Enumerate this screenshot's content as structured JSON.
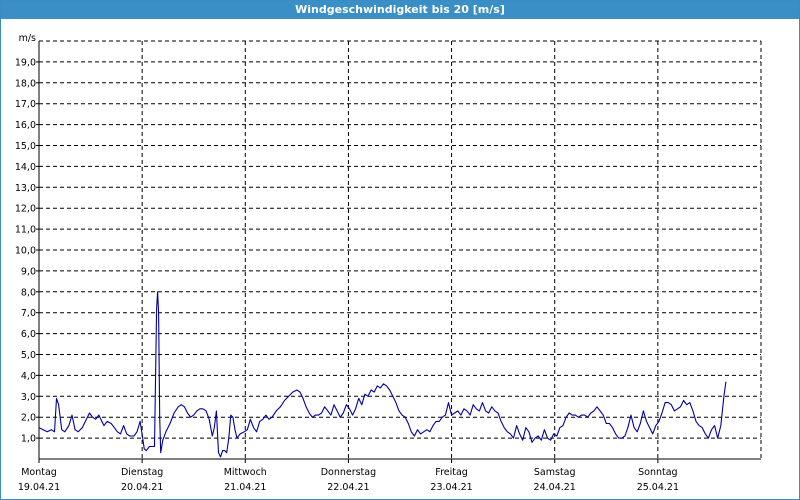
{
  "window": {
    "title": "Windgeschwindigkeit bis 20 [m/s]"
  },
  "colors": {
    "titlebar": "#3b8fc7",
    "line": "#0000a0",
    "grid": "#000000"
  },
  "chart_data": {
    "type": "line",
    "title": "Windgeschwindigkeit bis 20 [m/s]",
    "ylabel": "m/s",
    "xlabel": "",
    "ylim": [
      0,
      20
    ],
    "xlim": [
      0,
      7
    ],
    "grid": true,
    "yticks": [
      "1,0",
      "2,0",
      "3,0",
      "4,0",
      "5,0",
      "6,0",
      "7,0",
      "8,0",
      "9,0",
      "10,0",
      "11,0",
      "12,0",
      "13,0",
      "14,0",
      "15,0",
      "16,0",
      "17,0",
      "18,0",
      "19,0"
    ],
    "x_categories": [
      {
        "day": "Montag",
        "date": "19.04.21"
      },
      {
        "day": "Dienstag",
        "date": "20.04.21"
      },
      {
        "day": "Mittwoch",
        "date": "21.04.21"
      },
      {
        "day": "Donnerstag",
        "date": "22.04.21"
      },
      {
        "day": "Freitag",
        "date": "23.04.21"
      },
      {
        "day": "Samstag",
        "date": "24.04.21"
      },
      {
        "day": "Sonntag",
        "date": "25.04.21"
      }
    ],
    "series": [
      {
        "points": [
          [
            0.0,
            1.5
          ],
          [
            0.04,
            1.4
          ],
          [
            0.08,
            1.3
          ],
          [
            0.12,
            1.4
          ],
          [
            0.15,
            1.3
          ],
          [
            0.17,
            2.9
          ],
          [
            0.19,
            2.6
          ],
          [
            0.22,
            1.4
          ],
          [
            0.25,
            1.3
          ],
          [
            0.29,
            1.6
          ],
          [
            0.32,
            2.1
          ],
          [
            0.35,
            1.4
          ],
          [
            0.38,
            1.3
          ],
          [
            0.42,
            1.5
          ],
          [
            0.46,
            1.9
          ],
          [
            0.49,
            2.2
          ],
          [
            0.52,
            2.0
          ],
          [
            0.55,
            1.9
          ],
          [
            0.58,
            2.1
          ],
          [
            0.61,
            1.8
          ],
          [
            0.63,
            1.6
          ],
          [
            0.66,
            1.8
          ],
          [
            0.7,
            1.7
          ],
          [
            0.73,
            1.5
          ],
          [
            0.76,
            1.3
          ],
          [
            0.79,
            1.2
          ],
          [
            0.82,
            1.6
          ],
          [
            0.85,
            1.2
          ],
          [
            0.88,
            1.1
          ],
          [
            0.92,
            1.1
          ],
          [
            0.95,
            1.3
          ],
          [
            0.98,
            1.8
          ],
          [
            1.0,
            1.2
          ],
          [
            1.02,
            0.5
          ],
          [
            1.04,
            0.4
          ],
          [
            1.07,
            0.6
          ],
          [
            1.1,
            0.6
          ],
          [
            1.12,
            0.6
          ],
          [
            1.14,
            7.2
          ],
          [
            1.15,
            8.0
          ],
          [
            1.16,
            7.0
          ],
          [
            1.17,
            2.0
          ],
          [
            1.18,
            0.3
          ],
          [
            1.2,
            0.9
          ],
          [
            1.23,
            1.3
          ],
          [
            1.27,
            1.7
          ],
          [
            1.31,
            2.2
          ],
          [
            1.35,
            2.5
          ],
          [
            1.38,
            2.6
          ],
          [
            1.41,
            2.5
          ],
          [
            1.44,
            2.2
          ],
          [
            1.47,
            2.0
          ],
          [
            1.5,
            2.1
          ],
          [
            1.53,
            2.3
          ],
          [
            1.56,
            2.4
          ],
          [
            1.59,
            2.4
          ],
          [
            1.62,
            2.3
          ],
          [
            1.65,
            1.9
          ],
          [
            1.68,
            1.1
          ],
          [
            1.7,
            1.5
          ],
          [
            1.72,
            2.3
          ],
          [
            1.74,
            0.3
          ],
          [
            1.76,
            0.1
          ],
          [
            1.78,
            0.4
          ],
          [
            1.8,
            0.4
          ],
          [
            1.82,
            0.3
          ],
          [
            1.84,
            1.0
          ],
          [
            1.86,
            2.1
          ],
          [
            1.88,
            2.0
          ],
          [
            1.9,
            1.4
          ],
          [
            1.92,
            1.0
          ],
          [
            1.95,
            1.2
          ],
          [
            1.99,
            1.3
          ],
          [
            2.02,
            1.4
          ],
          [
            2.05,
            1.9
          ],
          [
            2.08,
            1.5
          ],
          [
            2.11,
            1.3
          ],
          [
            2.14,
            1.8
          ],
          [
            2.17,
            1.9
          ],
          [
            2.2,
            2.1
          ],
          [
            2.23,
            1.9
          ],
          [
            2.26,
            2.0
          ],
          [
            2.3,
            2.3
          ],
          [
            2.34,
            2.5
          ],
          [
            2.38,
            2.8
          ],
          [
            2.42,
            3.0
          ],
          [
            2.46,
            3.2
          ],
          [
            2.5,
            3.3
          ],
          [
            2.53,
            3.2
          ],
          [
            2.56,
            2.9
          ],
          [
            2.59,
            2.5
          ],
          [
            2.62,
            2.2
          ],
          [
            2.65,
            2.0
          ],
          [
            2.68,
            2.1
          ],
          [
            2.71,
            2.1
          ],
          [
            2.74,
            2.2
          ],
          [
            2.77,
            2.5
          ],
          [
            2.8,
            2.3
          ],
          [
            2.83,
            2.1
          ],
          [
            2.86,
            2.6
          ],
          [
            2.89,
            2.3
          ],
          [
            2.92,
            2.0
          ],
          [
            2.95,
            2.2
          ],
          [
            2.98,
            2.6
          ],
          [
            3.01,
            2.4
          ],
          [
            3.04,
            2.1
          ],
          [
            3.07,
            2.4
          ],
          [
            3.1,
            2.9
          ],
          [
            3.13,
            2.6
          ],
          [
            3.16,
            3.1
          ],
          [
            3.19,
            3.0
          ],
          [
            3.22,
            3.3
          ],
          [
            3.25,
            3.2
          ],
          [
            3.28,
            3.5
          ],
          [
            3.31,
            3.4
          ],
          [
            3.34,
            3.6
          ],
          [
            3.37,
            3.5
          ],
          [
            3.4,
            3.3
          ],
          [
            3.43,
            3.0
          ],
          [
            3.46,
            2.7
          ],
          [
            3.49,
            2.3
          ],
          [
            3.52,
            2.1
          ],
          [
            3.55,
            2.0
          ],
          [
            3.58,
            1.7
          ],
          [
            3.61,
            1.3
          ],
          [
            3.64,
            1.1
          ],
          [
            3.67,
            1.4
          ],
          [
            3.7,
            1.2
          ],
          [
            3.73,
            1.3
          ],
          [
            3.76,
            1.4
          ],
          [
            3.79,
            1.3
          ],
          [
            3.82,
            1.6
          ],
          [
            3.85,
            1.8
          ],
          [
            3.88,
            1.8
          ],
          [
            3.91,
            2.0
          ],
          [
            3.94,
            2.1
          ],
          [
            3.97,
            2.7
          ],
          [
            4.0,
            2.1
          ],
          [
            4.03,
            2.2
          ],
          [
            4.06,
            2.3
          ],
          [
            4.09,
            2.1
          ],
          [
            4.12,
            2.4
          ],
          [
            4.15,
            2.3
          ],
          [
            4.18,
            2.1
          ],
          [
            4.21,
            2.6
          ],
          [
            4.24,
            2.4
          ],
          [
            4.27,
            2.3
          ],
          [
            4.3,
            2.7
          ],
          [
            4.33,
            2.3
          ],
          [
            4.36,
            2.2
          ],
          [
            4.39,
            2.5
          ],
          [
            4.42,
            2.3
          ],
          [
            4.45,
            2.2
          ],
          [
            4.48,
            1.8
          ],
          [
            4.51,
            1.5
          ],
          [
            4.54,
            1.3
          ],
          [
            4.57,
            1.2
          ],
          [
            4.6,
            1.0
          ],
          [
            4.63,
            1.6
          ],
          [
            4.66,
            1.2
          ],
          [
            4.69,
            0.9
          ],
          [
            4.72,
            1.5
          ],
          [
            4.75,
            1.3
          ],
          [
            4.78,
            0.8
          ],
          [
            4.81,
            1.0
          ],
          [
            4.84,
            1.1
          ],
          [
            4.87,
            0.9
          ],
          [
            4.9,
            1.4
          ],
          [
            4.93,
            1.0
          ],
          [
            4.96,
            0.9
          ],
          [
            4.99,
            1.2
          ],
          [
            5.02,
            1.1
          ],
          [
            5.05,
            1.5
          ],
          [
            5.08,
            1.6
          ],
          [
            5.11,
            2.0
          ],
          [
            5.14,
            2.2
          ],
          [
            5.17,
            2.1
          ],
          [
            5.2,
            2.1
          ],
          [
            5.23,
            2.0
          ],
          [
            5.26,
            2.1
          ],
          [
            5.29,
            2.1
          ],
          [
            5.32,
            2.0
          ],
          [
            5.35,
            2.2
          ],
          [
            5.38,
            2.3
          ],
          [
            5.41,
            2.5
          ],
          [
            5.44,
            2.3
          ],
          [
            5.47,
            2.1
          ],
          [
            5.5,
            1.7
          ],
          [
            5.53,
            1.7
          ],
          [
            5.56,
            1.5
          ],
          [
            5.59,
            1.2
          ],
          [
            5.62,
            1.0
          ],
          [
            5.65,
            1.0
          ],
          [
            5.68,
            1.1
          ],
          [
            5.71,
            1.5
          ],
          [
            5.74,
            2.1
          ],
          [
            5.77,
            1.5
          ],
          [
            5.8,
            1.3
          ],
          [
            5.83,
            1.7
          ],
          [
            5.86,
            2.3
          ],
          [
            5.89,
            1.8
          ],
          [
            5.92,
            1.5
          ],
          [
            5.95,
            1.2
          ],
          [
            5.98,
            1.6
          ],
          [
            6.01,
            1.8
          ],
          [
            6.04,
            2.2
          ],
          [
            6.07,
            2.7
          ],
          [
            6.1,
            2.7
          ],
          [
            6.13,
            2.6
          ],
          [
            6.16,
            2.3
          ],
          [
            6.19,
            2.4
          ],
          [
            6.22,
            2.5
          ],
          [
            6.25,
            2.8
          ],
          [
            6.28,
            2.6
          ],
          [
            6.31,
            2.7
          ],
          [
            6.34,
            2.3
          ],
          [
            6.37,
            1.8
          ],
          [
            6.4,
            1.6
          ],
          [
            6.43,
            1.5
          ],
          [
            6.46,
            1.2
          ],
          [
            6.49,
            1.0
          ],
          [
            6.52,
            1.4
          ],
          [
            6.55,
            1.6
          ],
          [
            6.58,
            1.0
          ],
          [
            6.61,
            1.6
          ],
          [
            6.64,
            3.0
          ],
          [
            6.66,
            3.7
          ]
        ]
      }
    ]
  }
}
